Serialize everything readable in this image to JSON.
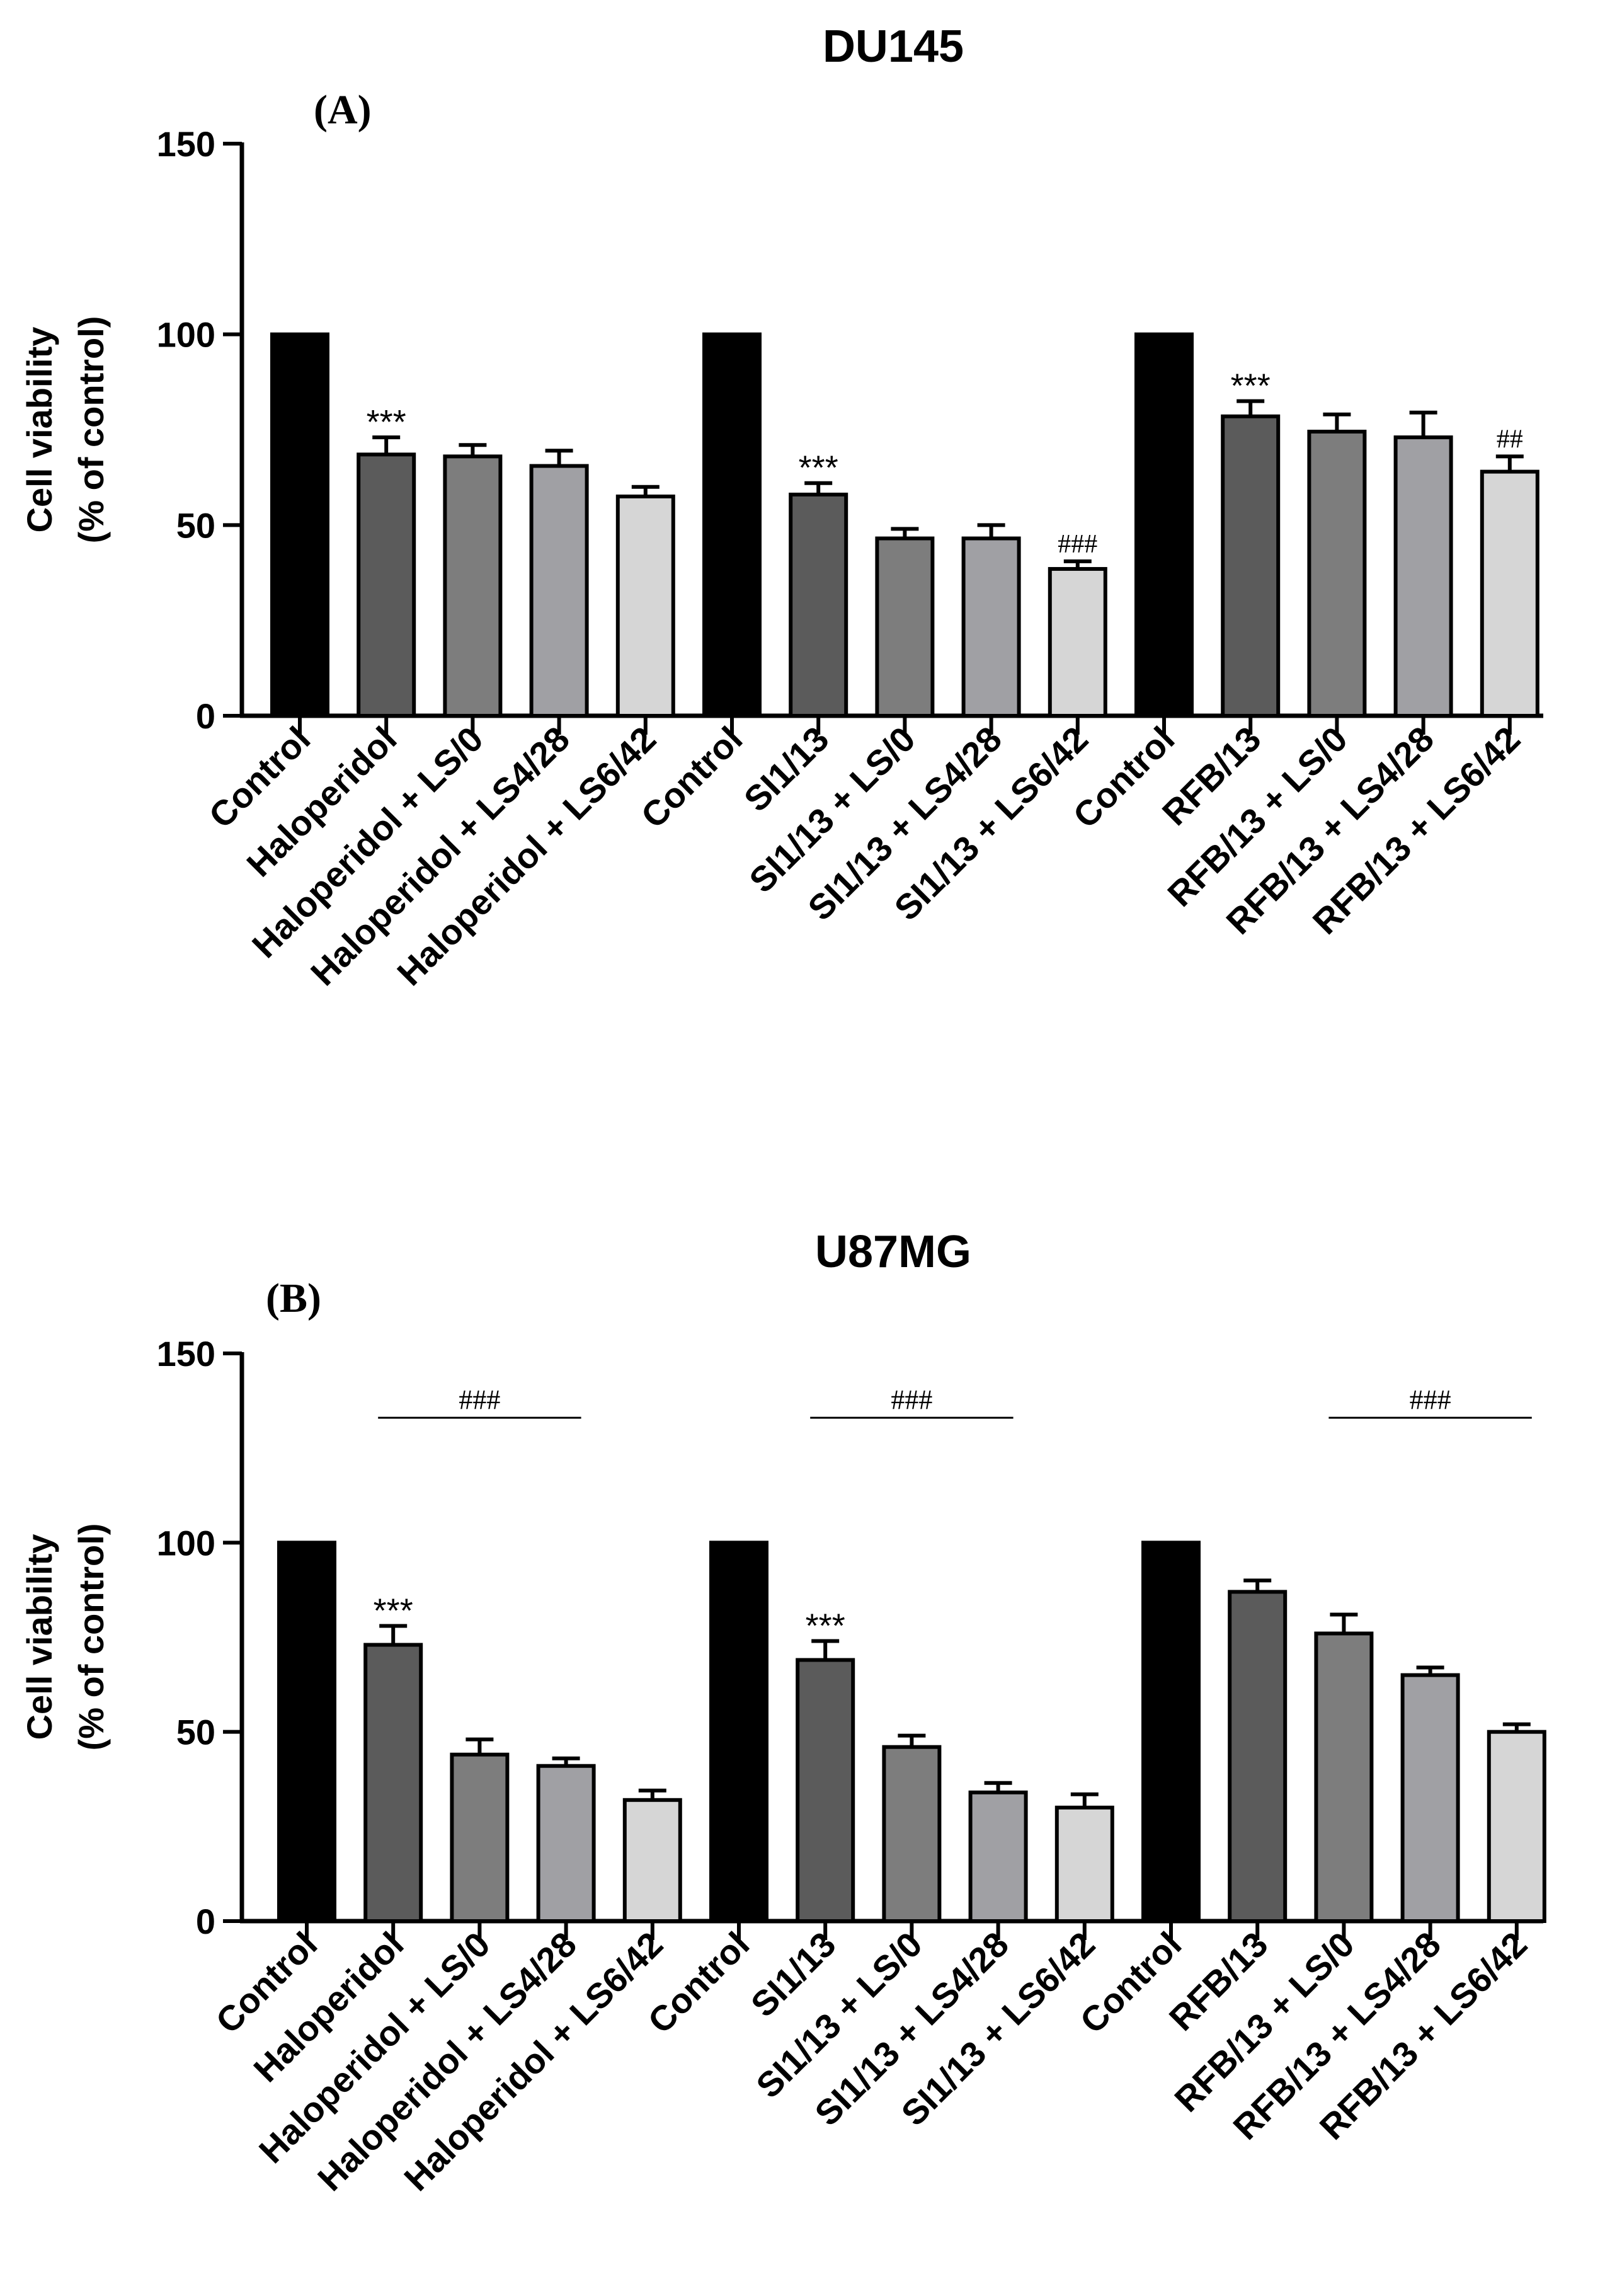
{
  "chart_data": [
    {
      "type": "bar",
      "panel_label": "(A)",
      "title": "DU145",
      "ylabel_line1": "Cell viability",
      "ylabel_line2": "(% of control)",
      "xlabel": "",
      "ylim": [
        0,
        150
      ],
      "yticks": [
        "0",
        "50",
        "100",
        "150"
      ],
      "grid": false,
      "categories": [
        "Control",
        "Haloperidol",
        "Haloperidol + LS/0",
        "Haloperidol + LS4/28",
        "Haloperidol + LS6/42",
        "Control",
        "SI1/13",
        "SI1/13 + LS/0",
        "SI1/13 + LS4/28",
        "SI1/13 + LS6/42",
        "Control",
        "RFB/13",
        "RFB/13 + LS/0",
        "RFB/13 + LS4/28",
        "RFB/13 + LS6/42"
      ],
      "values": [
        100,
        68.5,
        68,
        65.5,
        57.5,
        100,
        58,
        46.5,
        46.5,
        38.5,
        100,
        78.5,
        74.5,
        73,
        64
      ],
      "errors": [
        0,
        4.5,
        3,
        4,
        2.5,
        0,
        3,
        2.5,
        3.5,
        2,
        0,
        4,
        4.5,
        6.5,
        4
      ],
      "colors": [
        "#000000",
        "#5b5b5b",
        "#7d7d7d",
        "#a0a0a4",
        "#d6d6d6",
        "#000000",
        "#5b5b5b",
        "#7d7d7d",
        "#a0a0a4",
        "#d6d6d6",
        "#000000",
        "#5b5b5b",
        "#7d7d7d",
        "#a0a0a4",
        "#d6d6d6"
      ],
      "annotations": [
        {
          "index": 1,
          "text": "***",
          "style": "sans"
        },
        {
          "index": 6,
          "text": "***",
          "style": "sans"
        },
        {
          "index": 9,
          "text": "###",
          "style": "serif"
        },
        {
          "index": 11,
          "text": "***",
          "style": "sans"
        },
        {
          "index": 14,
          "text": "##",
          "style": "serif"
        }
      ],
      "brackets": []
    },
    {
      "type": "bar",
      "panel_label": "(B)",
      "title": "U87MG",
      "ylabel_line1": "Cell viability",
      "ylabel_line2": "(% of control)",
      "xlabel": "",
      "ylim": [
        0,
        150
      ],
      "yticks": [
        "0",
        "50",
        "100",
        "150"
      ],
      "grid": false,
      "categories": [
        "Control",
        "Haloperidol",
        "Haloperidol + LS/0",
        "Haloperidol + LS4/28",
        "Haloperidol + LS6/42",
        "Control",
        "SI1/13",
        "SI1/13 + LS/0",
        "SI1/13 + LS4/28",
        "SI1/13 + LS6/42",
        "Control",
        "RFB/13",
        "RFB/13 + LS/0",
        "RFB/13 + LS4/28",
        "RFB/13 + LS6/42"
      ],
      "values": [
        100,
        73,
        44,
        41,
        32,
        100,
        69,
        46,
        34,
        30,
        100,
        87,
        76,
        65,
        50
      ],
      "errors": [
        0,
        5,
        4,
        2,
        2.5,
        0,
        5,
        3,
        2.5,
        3.5,
        0,
        3,
        5,
        2,
        2
      ],
      "colors": [
        "#000000",
        "#5b5b5b",
        "#7d7d7d",
        "#a0a0a4",
        "#d6d6d6",
        "#000000",
        "#5b5b5b",
        "#7d7d7d",
        "#a0a0a4",
        "#d6d6d6",
        "#000000",
        "#5b5b5b",
        "#7d7d7d",
        "#a0a0a4",
        "#d6d6d6"
      ],
      "annotations": [
        {
          "index": 1,
          "text": "***",
          "style": "sans"
        },
        {
          "index": 6,
          "text": "***",
          "style": "sans"
        }
      ],
      "brackets": [
        {
          "from": 2,
          "to": 4,
          "value": 133,
          "text": "###"
        },
        {
          "from": 7,
          "to": 9,
          "value": 133,
          "text": "###"
        },
        {
          "from": 13,
          "to": 15,
          "value": 133,
          "text": "###"
        }
      ]
    }
  ]
}
